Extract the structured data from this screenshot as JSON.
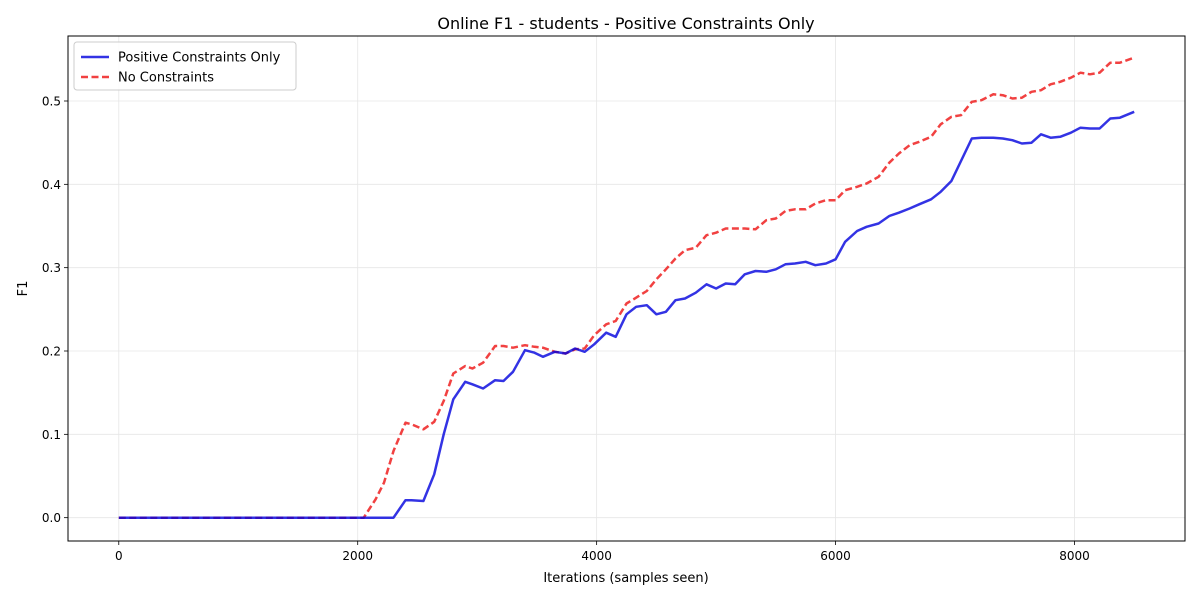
{
  "chart_data": {
    "type": "line",
    "title": "Online F1 - students - Positive Constraints Only",
    "xlabel": "Iterations (samples seen)",
    "ylabel": "F1",
    "xlim": [
      -425,
      8925
    ],
    "ylim": [
      -0.028,
      0.578
    ],
    "xticks": [
      0,
      2000,
      4000,
      6000,
      8000
    ],
    "xtick_labels": [
      "0",
      "2000",
      "4000",
      "6000",
      "8000"
    ],
    "yticks": [
      0.0,
      0.1,
      0.2,
      0.3,
      0.4,
      0.5
    ],
    "ytick_labels": [
      "0.0",
      "0.1",
      "0.2",
      "0.3",
      "0.4",
      "0.5"
    ],
    "grid": true,
    "legend_position": "upper-left",
    "x": [
      0,
      2000,
      2050,
      2150,
      2220,
      2300,
      2400,
      2450,
      2550,
      2640,
      2720,
      2800,
      2900,
      2960,
      3050,
      3150,
      3220,
      3300,
      3400,
      3480,
      3550,
      3650,
      3740,
      3820,
      3900,
      3980,
      4080,
      4160,
      4250,
      4330,
      4420,
      4500,
      4580,
      4660,
      4740,
      4830,
      4920,
      5000,
      5080,
      5160,
      5240,
      5330,
      5420,
      5500,
      5580,
      5660,
      5750,
      5830,
      5920,
      6000,
      6080,
      6180,
      6260,
      6360,
      6450,
      6530,
      6620,
      6700,
      6800,
      6880,
      6970,
      7050,
      7140,
      7220,
      7320,
      7400,
      7480,
      7560,
      7640,
      7720,
      7800,
      7880,
      7970,
      8050,
      8130,
      8210,
      8300,
      8380,
      8500
    ],
    "series": [
      {
        "name": "Positive Constraints Only",
        "color": "#0000dd",
        "style": "solid",
        "values": [
          0.0,
          0.0,
          0.0,
          0.0,
          0.0,
          0.0,
          0.021,
          0.021,
          0.02,
          0.052,
          0.1,
          0.142,
          0.163,
          0.16,
          0.155,
          0.165,
          0.164,
          0.175,
          0.201,
          0.198,
          0.193,
          0.199,
          0.197,
          0.203,
          0.199,
          0.208,
          0.222,
          0.217,
          0.244,
          0.253,
          0.255,
          0.244,
          0.247,
          0.261,
          0.263,
          0.27,
          0.28,
          0.275,
          0.281,
          0.28,
          0.292,
          0.296,
          0.295,
          0.298,
          0.304,
          0.305,
          0.307,
          0.303,
          0.305,
          0.31,
          0.331,
          0.344,
          0.349,
          0.353,
          0.362,
          0.366,
          0.371,
          0.376,
          0.382,
          0.391,
          0.404,
          0.428,
          0.455,
          0.456,
          0.456,
          0.455,
          0.453,
          0.449,
          0.45,
          0.46,
          0.456,
          0.457,
          0.462,
          0.468,
          0.467,
          0.467,
          0.479,
          0.48,
          0.487
        ]
      },
      {
        "name": "No Constraints",
        "color": "#ee1111",
        "style": "dashed",
        "values": [
          0.0,
          0.0,
          0.0,
          0.022,
          0.042,
          0.08,
          0.114,
          0.112,
          0.106,
          0.115,
          0.14,
          0.173,
          0.182,
          0.179,
          0.186,
          0.206,
          0.206,
          0.204,
          0.207,
          0.205,
          0.204,
          0.199,
          0.197,
          0.202,
          0.203,
          0.219,
          0.232,
          0.236,
          0.257,
          0.264,
          0.272,
          0.286,
          0.298,
          0.311,
          0.321,
          0.324,
          0.339,
          0.342,
          0.347,
          0.347,
          0.347,
          0.346,
          0.357,
          0.359,
          0.368,
          0.37,
          0.37,
          0.377,
          0.381,
          0.381,
          0.393,
          0.397,
          0.401,
          0.409,
          0.426,
          0.437,
          0.447,
          0.451,
          0.457,
          0.472,
          0.481,
          0.483,
          0.499,
          0.501,
          0.508,
          0.507,
          0.503,
          0.504,
          0.511,
          0.513,
          0.52,
          0.523,
          0.528,
          0.534,
          0.532,
          0.534,
          0.546,
          0.546,
          0.552
        ]
      }
    ]
  }
}
